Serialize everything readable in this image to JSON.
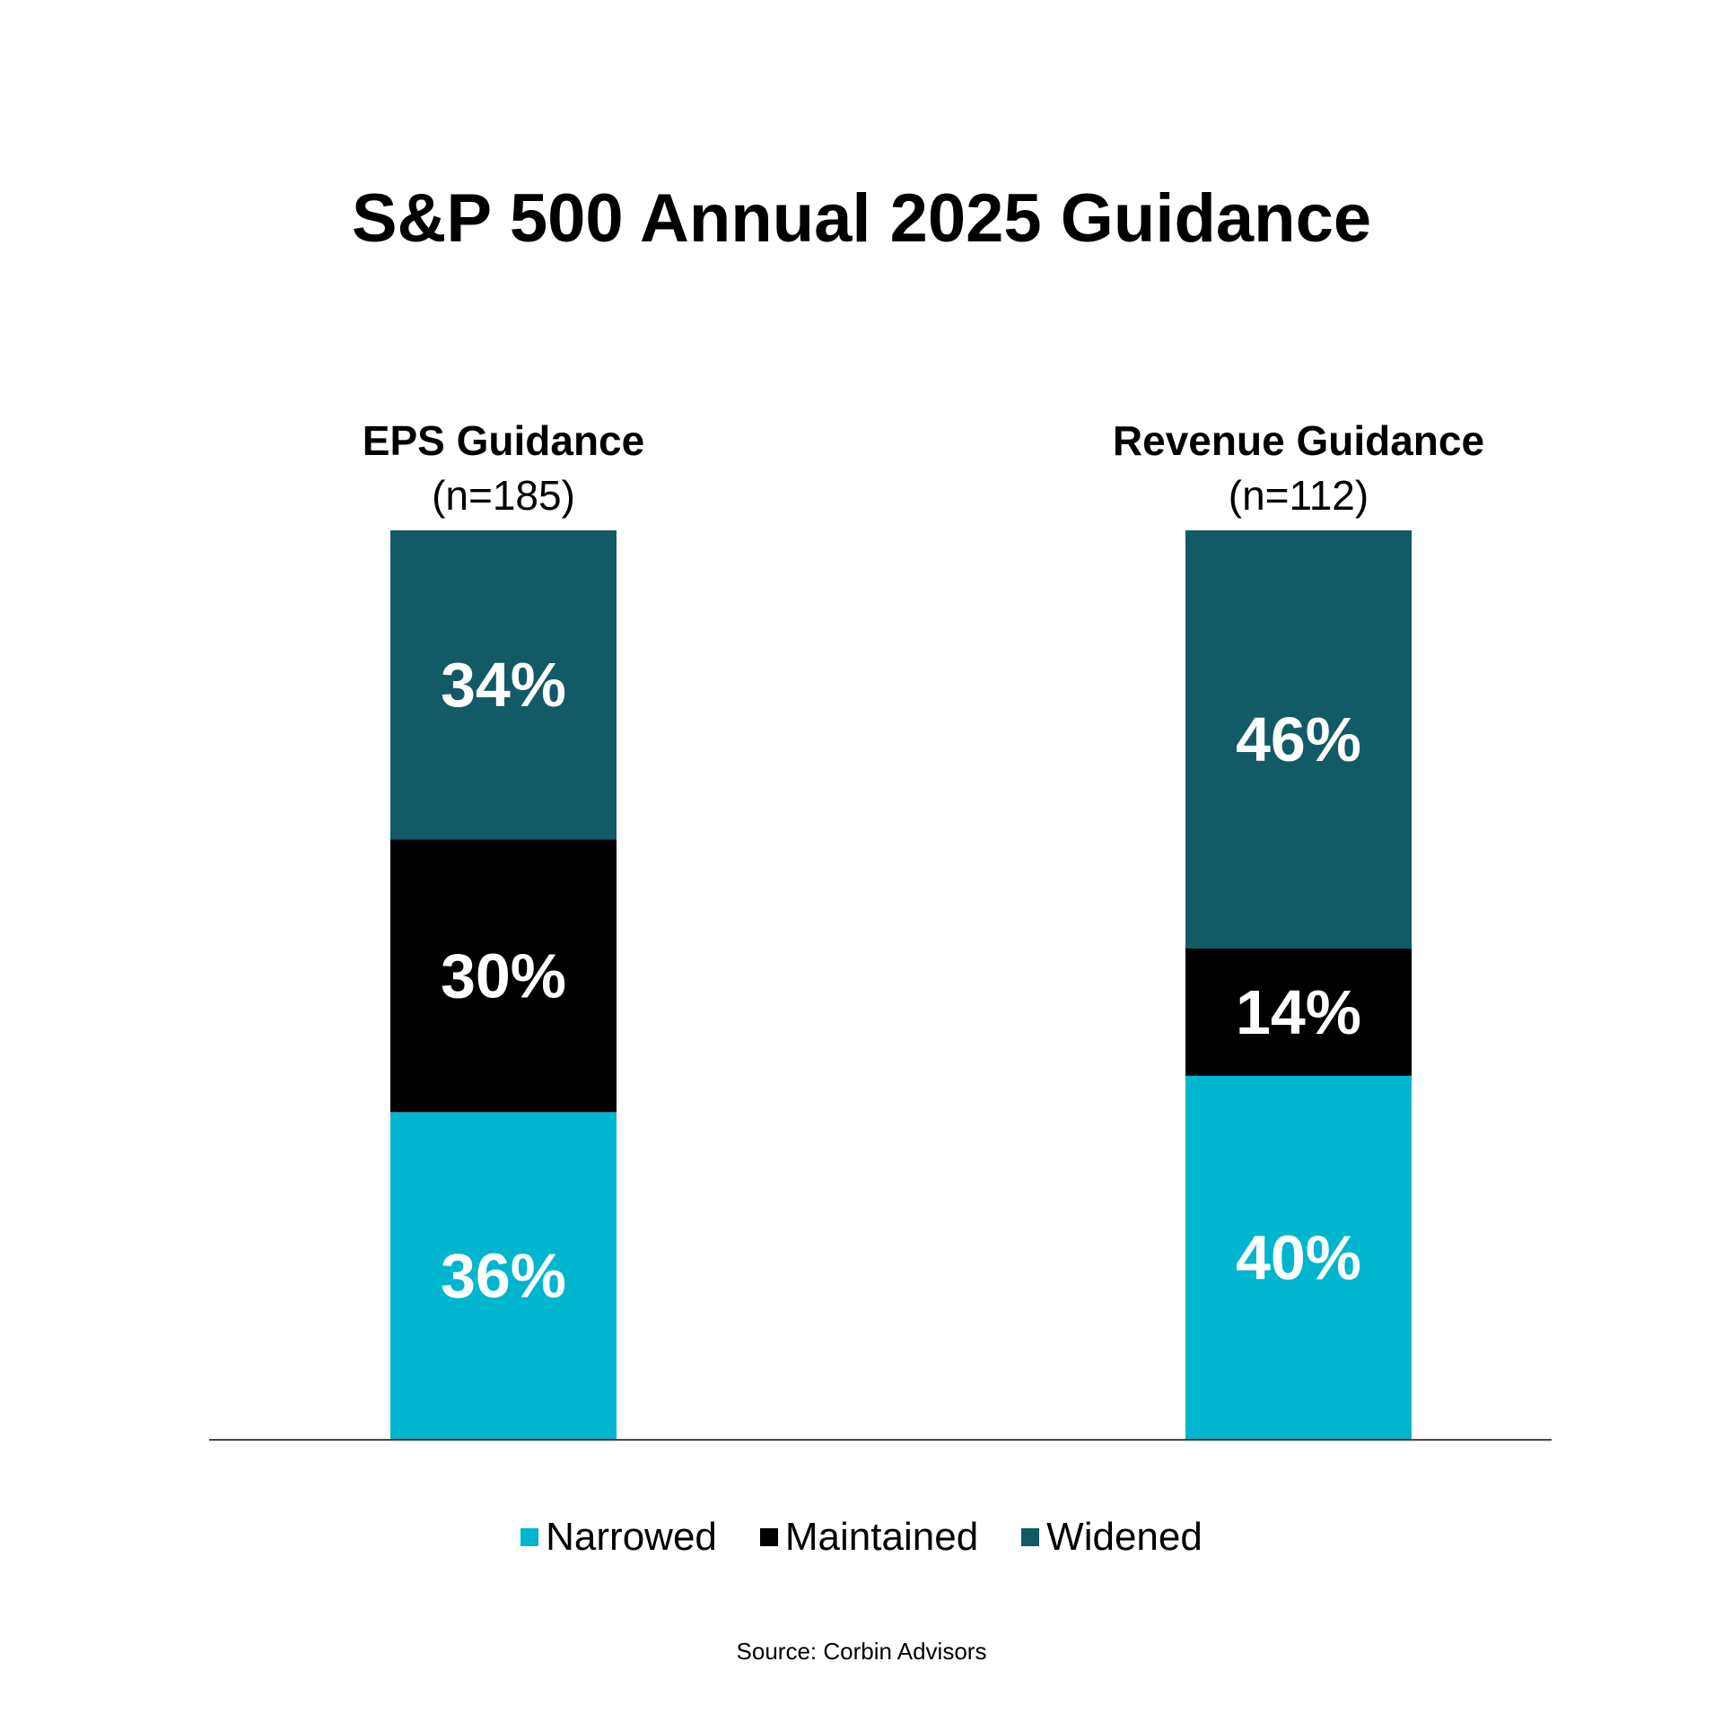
{
  "chart_data": {
    "type": "bar",
    "stacked": true,
    "title": "S&P 500 Annual 2025 Guidance",
    "categories": [
      {
        "label": "EPS Guidance",
        "sublabel": "(n=185)"
      },
      {
        "label": "Revenue Guidance",
        "sublabel": "(n=112)"
      }
    ],
    "series": [
      {
        "name": "Narrowed",
        "color": "#00b5ce",
        "values": [
          36,
          40
        ],
        "labels": [
          "36%",
          "40%"
        ]
      },
      {
        "name": "Maintained",
        "color": "#000000",
        "values": [
          30,
          14
        ],
        "labels": [
          "30%",
          "14%"
        ]
      },
      {
        "name": "Widened",
        "color": "#115a66",
        "values": [
          34,
          46
        ],
        "labels": [
          "34%",
          "46%"
        ]
      }
    ],
    "ylim": [
      0,
      100
    ],
    "legend_position": "bottom",
    "source": "Source: Corbin Advisors"
  }
}
